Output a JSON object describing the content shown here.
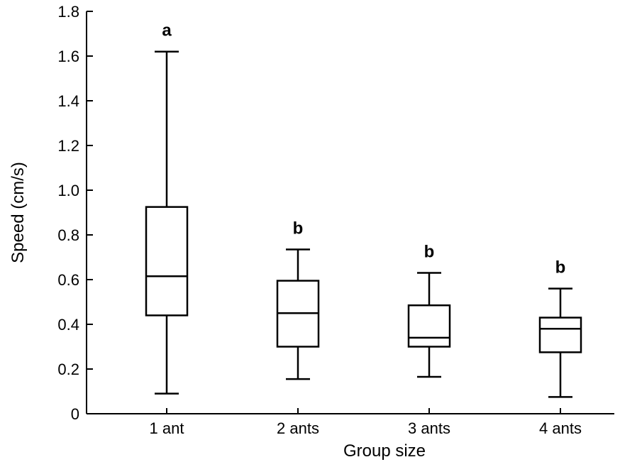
{
  "chart_data": {
    "type": "boxplot",
    "xlabel": "Group size",
    "ylabel": "Speed (cm/s)",
    "ylim": [
      0,
      1.8
    ],
    "yticks": [
      {
        "value": 0,
        "label": "0"
      },
      {
        "value": 0.2,
        "label": "0.2"
      },
      {
        "value": 0.4,
        "label": "0.4"
      },
      {
        "value": 0.6,
        "label": "0.6"
      },
      {
        "value": 0.8,
        "label": "0.8"
      },
      {
        "value": 1.0,
        "label": "1.0"
      },
      {
        "value": 1.2,
        "label": "1.2"
      },
      {
        "value": 1.4,
        "label": "1.4"
      },
      {
        "value": 1.6,
        "label": "1.6"
      },
      {
        "value": 1.8,
        "label": "1.8"
      }
    ],
    "grid": false,
    "categories": [
      "1 ant",
      "2 ants",
      "3 ants",
      "4 ants"
    ],
    "boxes": [
      {
        "category": "1 ant",
        "min": 0.09,
        "q1": 0.44,
        "median": 0.615,
        "q3": 0.925,
        "max": 1.62,
        "significance": "a"
      },
      {
        "category": "2 ants",
        "min": 0.155,
        "q1": 0.3,
        "median": 0.45,
        "q3": 0.595,
        "max": 0.735,
        "significance": "b"
      },
      {
        "category": "3 ants",
        "min": 0.165,
        "q1": 0.3,
        "median": 0.34,
        "q3": 0.485,
        "max": 0.63,
        "significance": "b"
      },
      {
        "category": "4 ants",
        "min": 0.075,
        "q1": 0.275,
        "median": 0.38,
        "q3": 0.43,
        "max": 0.56,
        "significance": "b"
      }
    ]
  }
}
